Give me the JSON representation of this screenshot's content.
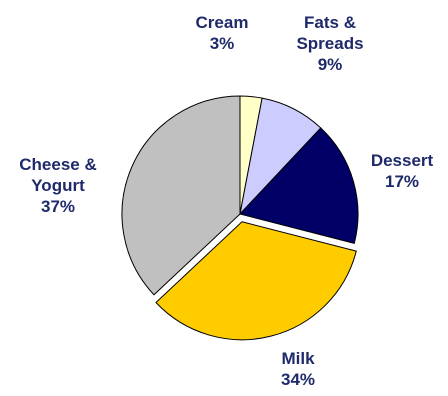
{
  "chart_data": {
    "type": "pie",
    "title": "",
    "legend": "none",
    "slices": [
      {
        "label": [
          "Cream"
        ],
        "percent_label": "3%",
        "value": 3,
        "color": "#ffffc8"
      },
      {
        "label": [
          "Fats &",
          "Spreads"
        ],
        "percent_label": "9%",
        "value": 9,
        "color": "#ccccff"
      },
      {
        "label": [
          "Dessert"
        ],
        "percent_label": "17%",
        "value": 17,
        "color": "#000066"
      },
      {
        "label": [
          "Milk"
        ],
        "percent_label": "34%",
        "value": 34,
        "color": "#ffcc00",
        "exploded": true
      },
      {
        "label": [
          "Cheese &",
          "Yogurt"
        ],
        "percent_label": "37%",
        "value": 37,
        "color": "#c0c0c0"
      }
    ]
  }
}
